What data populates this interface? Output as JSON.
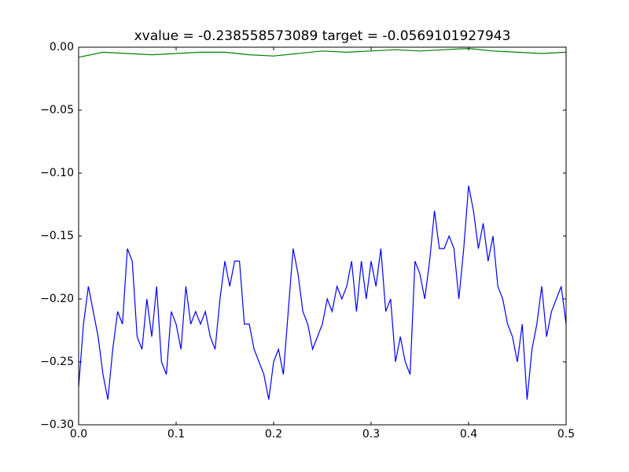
{
  "chart_data": {
    "type": "line",
    "title": "xvalue = -0.238558573089 target = -0.0569101927943",
    "xlim": [
      0,
      0.5
    ],
    "ylim": [
      -0.3,
      0
    ],
    "xticks": [
      {
        "value": 0,
        "label": "0.0"
      },
      {
        "value": 0.1,
        "label": "0.1"
      },
      {
        "value": 0.2,
        "label": "0.2"
      },
      {
        "value": 0.3,
        "label": "0.3"
      },
      {
        "value": 0.4,
        "label": "0.4"
      },
      {
        "value": 0.5,
        "label": "0.5"
      }
    ],
    "yticks": [
      {
        "value": 0,
        "label": "0.00"
      },
      {
        "value": -0.05,
        "label": "−0.05"
      },
      {
        "value": -0.1,
        "label": "−0.10"
      },
      {
        "value": -0.15,
        "label": "−0.15"
      },
      {
        "value": -0.2,
        "label": "−0.20"
      },
      {
        "value": -0.25,
        "label": "−0.25"
      },
      {
        "value": -0.3,
        "label": "−0.30"
      }
    ],
    "grid": false,
    "series": [
      {
        "color": "#0000ff",
        "x": [
          0,
          0.005,
          0.01,
          0.015,
          0.02,
          0.025,
          0.03,
          0.035,
          0.04,
          0.045,
          0.05,
          0.055,
          0.06,
          0.065,
          0.07,
          0.075,
          0.08,
          0.085,
          0.09,
          0.095,
          0.1,
          0.105,
          0.11,
          0.115,
          0.12,
          0.125,
          0.13,
          0.135,
          0.14,
          0.145,
          0.15,
          0.155,
          0.16,
          0.165,
          0.17,
          0.175,
          0.18,
          0.185,
          0.19,
          0.195,
          0.2,
          0.205,
          0.21,
          0.215,
          0.22,
          0.225,
          0.23,
          0.235,
          0.24,
          0.245,
          0.25,
          0.255,
          0.26,
          0.265,
          0.27,
          0.275,
          0.28,
          0.285,
          0.29,
          0.295,
          0.3,
          0.305,
          0.31,
          0.315,
          0.32,
          0.325,
          0.33,
          0.335,
          0.34,
          0.345,
          0.35,
          0.355,
          0.36,
          0.365,
          0.37,
          0.375,
          0.38,
          0.385,
          0.39,
          0.395,
          0.4,
          0.405,
          0.41,
          0.415,
          0.42,
          0.425,
          0.43,
          0.435,
          0.44,
          0.445,
          0.45,
          0.455,
          0.46,
          0.465,
          0.47,
          0.475,
          0.48,
          0.485,
          0.49,
          0.495,
          0.5
        ],
        "values": [
          -0.27,
          -0.22,
          -0.19,
          -0.21,
          -0.23,
          -0.26,
          -0.28,
          -0.24,
          -0.21,
          -0.22,
          -0.16,
          -0.17,
          -0.23,
          -0.24,
          -0.2,
          -0.23,
          -0.19,
          -0.25,
          -0.26,
          -0.21,
          -0.22,
          -0.24,
          -0.19,
          -0.22,
          -0.21,
          -0.22,
          -0.21,
          -0.23,
          -0.24,
          -0.2,
          -0.17,
          -0.19,
          -0.17,
          -0.17,
          -0.22,
          -0.22,
          -0.24,
          -0.25,
          -0.26,
          -0.28,
          -0.25,
          -0.24,
          -0.26,
          -0.21,
          -0.16,
          -0.18,
          -0.21,
          -0.22,
          -0.24,
          -0.23,
          -0.22,
          -0.2,
          -0.21,
          -0.19,
          -0.2,
          -0.19,
          -0.17,
          -0.21,
          -0.17,
          -0.2,
          -0.17,
          -0.19,
          -0.16,
          -0.21,
          -0.2,
          -0.25,
          -0.23,
          -0.25,
          -0.26,
          -0.17,
          -0.18,
          -0.2,
          -0.17,
          -0.13,
          -0.16,
          -0.16,
          -0.15,
          -0.16,
          -0.2,
          -0.16,
          -0.11,
          -0.13,
          -0.16,
          -0.14,
          -0.17,
          -0.15,
          -0.19,
          -0.2,
          -0.22,
          -0.23,
          -0.25,
          -0.22,
          -0.28,
          -0.24,
          -0.22,
          -0.19,
          -0.23,
          -0.21,
          -0.2,
          -0.19,
          -0.22
        ]
      },
      {
        "color": "#008000",
        "x": [
          0,
          0.025,
          0.05,
          0.075,
          0.1,
          0.125,
          0.15,
          0.175,
          0.2,
          0.225,
          0.25,
          0.275,
          0.3,
          0.325,
          0.35,
          0.375,
          0.4,
          0.425,
          0.45,
          0.475,
          0.5
        ],
        "values": [
          -0.008,
          -0.004,
          -0.005,
          -0.006,
          -0.005,
          -0.004,
          -0.004,
          -0.006,
          -0.007,
          -0.005,
          -0.003,
          -0.004,
          -0.003,
          -0.002,
          -0.003,
          -0.002,
          -0.001,
          -0.003,
          -0.004,
          -0.005,
          -0.004
        ]
      }
    ]
  }
}
